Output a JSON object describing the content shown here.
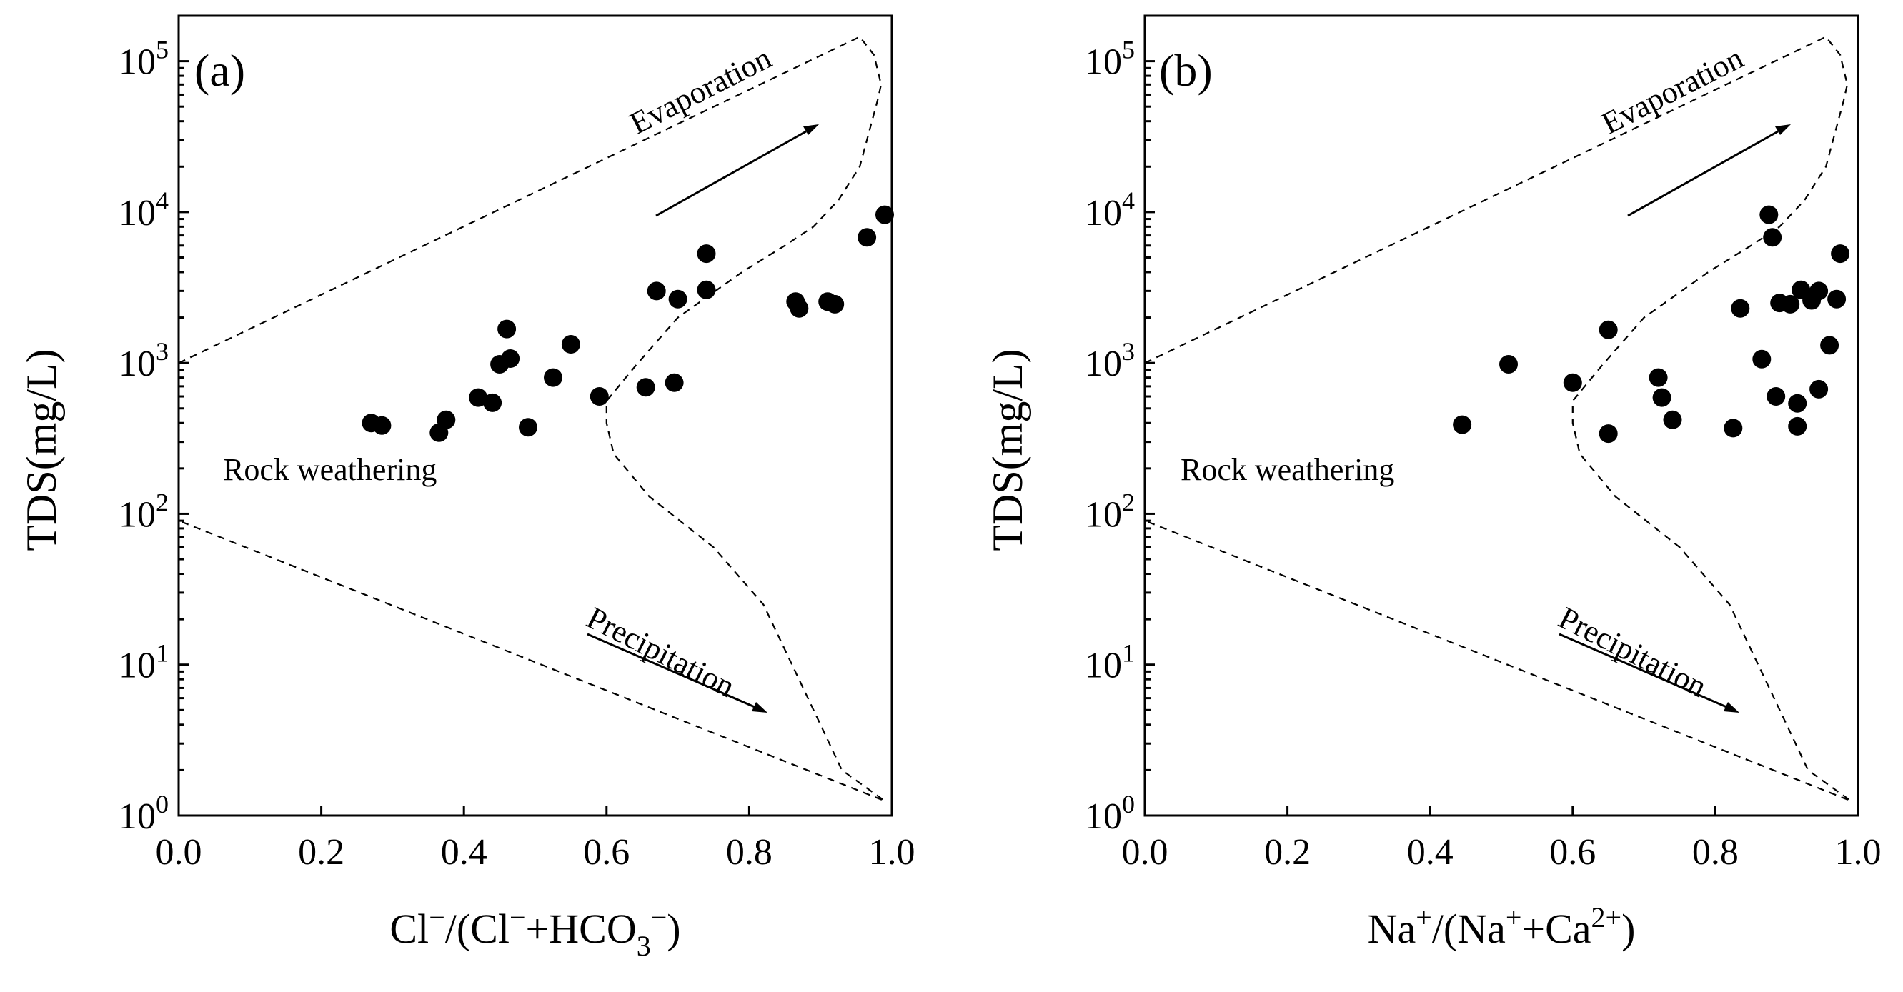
{
  "chart_data": [
    {
      "type": "scatter",
      "panel_label": "(a)",
      "ylabel": "TDS(mg/L)",
      "xlabel": "Cl⁻/(Cl⁻+HCO₃⁻)",
      "xlabel_parts": {
        "a": "Cl",
        "b": "/(Cl",
        "c": "+HCO",
        "sub": "3",
        "sup": "−",
        "end": ")"
      },
      "xlim": [
        0,
        1
      ],
      "ylim": [
        1,
        200000
      ],
      "yscale": "log",
      "xticks": [
        "0.0",
        "0.2",
        "0.4",
        "0.6",
        "0.8",
        "1.0"
      ],
      "ytick_exponents": [
        "0",
        "1",
        "2",
        "3",
        "4",
        "5"
      ],
      "ytick_base": "10",
      "annotations": {
        "rock": "Rock weathering",
        "evaporation": "Evaporation",
        "precipitation": "Precipitation"
      },
      "points": [
        {
          "x": 0.27,
          "y": 400
        },
        {
          "x": 0.285,
          "y": 385
        },
        {
          "x": 0.365,
          "y": 345
        },
        {
          "x": 0.375,
          "y": 420
        },
        {
          "x": 0.42,
          "y": 590
        },
        {
          "x": 0.44,
          "y": 545
        },
        {
          "x": 0.45,
          "y": 980
        },
        {
          "x": 0.46,
          "y": 1680
        },
        {
          "x": 0.465,
          "y": 1070
        },
        {
          "x": 0.49,
          "y": 375
        },
        {
          "x": 0.525,
          "y": 800
        },
        {
          "x": 0.55,
          "y": 1330
        },
        {
          "x": 0.59,
          "y": 600
        },
        {
          "x": 0.655,
          "y": 690
        },
        {
          "x": 0.67,
          "y": 3000
        },
        {
          "x": 0.695,
          "y": 740
        },
        {
          "x": 0.7,
          "y": 2650
        },
        {
          "x": 0.74,
          "y": 5300
        },
        {
          "x": 0.74,
          "y": 3050
        },
        {
          "x": 0.865,
          "y": 2550
        },
        {
          "x": 0.87,
          "y": 2300
        },
        {
          "x": 0.91,
          "y": 2550
        },
        {
          "x": 0.92,
          "y": 2450
        },
        {
          "x": 0.965,
          "y": 6800
        },
        {
          "x": 0.99,
          "y": 9600
        }
      ]
    },
    {
      "type": "scatter",
      "panel_label": "(b)",
      "ylabel": "TDS(mg/L)",
      "xlabel": "Na⁺/(Na⁺+Ca²⁺)",
      "xlabel_parts": {
        "a": "Na",
        "sup1": "+",
        "b": "/(Na",
        "sup2": "+",
        "c": "+Ca",
        "sup3": "2+",
        "end": ")"
      },
      "xlim": [
        0,
        1
      ],
      "ylim": [
        1,
        200000
      ],
      "yscale": "log",
      "xticks": [
        "0.0",
        "0.2",
        "0.4",
        "0.6",
        "0.8",
        "1.0"
      ],
      "ytick_exponents": [
        "0",
        "1",
        "2",
        "3",
        "4",
        "5"
      ],
      "ytick_base": "10",
      "annotations": {
        "rock": "Rock weathering",
        "evaporation": "Evaporation",
        "precipitation": "Precipitation"
      },
      "points": [
        {
          "x": 0.445,
          "y": 390
        },
        {
          "x": 0.51,
          "y": 980
        },
        {
          "x": 0.6,
          "y": 740
        },
        {
          "x": 0.65,
          "y": 1660
        },
        {
          "x": 0.65,
          "y": 340
        },
        {
          "x": 0.72,
          "y": 800
        },
        {
          "x": 0.725,
          "y": 590
        },
        {
          "x": 0.74,
          "y": 420
        },
        {
          "x": 0.825,
          "y": 370
        },
        {
          "x": 0.835,
          "y": 2300
        },
        {
          "x": 0.865,
          "y": 1060
        },
        {
          "x": 0.875,
          "y": 9600
        },
        {
          "x": 0.88,
          "y": 6800
        },
        {
          "x": 0.885,
          "y": 600
        },
        {
          "x": 0.89,
          "y": 2500
        },
        {
          "x": 0.905,
          "y": 2450
        },
        {
          "x": 0.915,
          "y": 540
        },
        {
          "x": 0.915,
          "y": 380
        },
        {
          "x": 0.92,
          "y": 3050
        },
        {
          "x": 0.935,
          "y": 2600
        },
        {
          "x": 0.945,
          "y": 3000
        },
        {
          "x": 0.945,
          "y": 670
        },
        {
          "x": 0.96,
          "y": 1310
        },
        {
          "x": 0.97,
          "y": 2650
        },
        {
          "x": 0.975,
          "y": 5300
        }
      ]
    }
  ]
}
